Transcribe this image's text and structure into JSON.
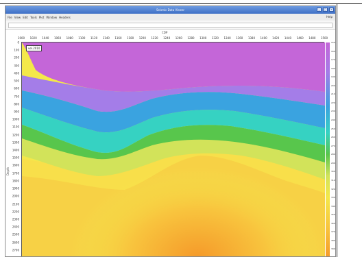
{
  "window": {
    "title": "Seismic Data Viewer",
    "menu": [
      "File",
      "View",
      "Edit",
      "Tools",
      "Plot",
      "Window",
      "Headers"
    ],
    "help": "Help"
  },
  "plot": {
    "x_title": "CDP",
    "x_ticks": [
      "1000",
      "1020",
      "1040",
      "1060",
      "1080",
      "1100",
      "1120",
      "1140",
      "1160",
      "1180",
      "1200",
      "1220",
      "1240",
      "1260",
      "1280",
      "1300",
      "1320",
      "1340",
      "1360",
      "1380",
      "1400",
      "1420",
      "1440",
      "1460",
      "1480",
      "1500"
    ],
    "y_title": "Depth",
    "y_ticks": [
      "0",
      "100",
      "200",
      "300",
      "400",
      "500",
      "600",
      "700",
      "800",
      "900",
      "1000",
      "1100",
      "1200",
      "1300",
      "1400",
      "1500",
      "1600",
      "1700",
      "1800",
      "1900",
      "2000",
      "2100",
      "2200",
      "2300",
      "2400",
      "2500",
      "2600",
      "2700",
      "2800"
    ],
    "legend_badge": "vel.2010",
    "colorbar_ticks": [
      "1500",
      "1600",
      "1700",
      "1800",
      "1900",
      "2000",
      "2100",
      "2200",
      "2300",
      "2400",
      "2500",
      "2600",
      "2700",
      "2800",
      "2900",
      "3000",
      "3100",
      "3200",
      "3300",
      "3400",
      "3500",
      "3600",
      "3700",
      "3800",
      "3900",
      "4000"
    ],
    "palette": {
      "magenta": "#c466d8",
      "lavender": "#a47de8",
      "blue": "#3aa3e0",
      "cyan": "#36d2c2",
      "green": "#58c64c",
      "lime": "#d2e35a",
      "yellow": "#f4e84a",
      "amber": "#f8c53e",
      "orange": "#f59a2a"
    }
  }
}
